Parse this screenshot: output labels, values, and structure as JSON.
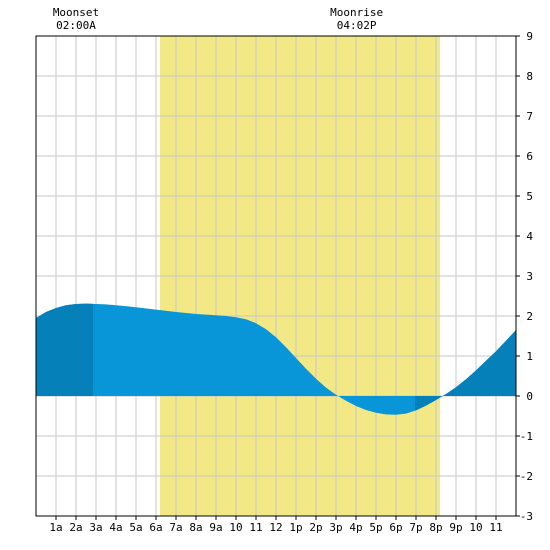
{
  "chart_data": {
    "type": "area",
    "title": "",
    "xlabel": "",
    "ylabel": "",
    "xlim": [
      0,
      24
    ],
    "ylim": [
      -3,
      9
    ],
    "grid": true,
    "x_ticks": [
      {
        "x": 1,
        "label": "1a"
      },
      {
        "x": 2,
        "label": "2a"
      },
      {
        "x": 3,
        "label": "3a"
      },
      {
        "x": 4,
        "label": "4a"
      },
      {
        "x": 5,
        "label": "5a"
      },
      {
        "x": 6,
        "label": "6a"
      },
      {
        "x": 7,
        "label": "7a"
      },
      {
        "x": 8,
        "label": "8a"
      },
      {
        "x": 9,
        "label": "9a"
      },
      {
        "x": 10,
        "label": "10"
      },
      {
        "x": 11,
        "label": "11"
      },
      {
        "x": 12,
        "label": "12"
      },
      {
        "x": 13,
        "label": "1p"
      },
      {
        "x": 14,
        "label": "2p"
      },
      {
        "x": 15,
        "label": "3p"
      },
      {
        "x": 16,
        "label": "4p"
      },
      {
        "x": 17,
        "label": "5p"
      },
      {
        "x": 18,
        "label": "6p"
      },
      {
        "x": 19,
        "label": "7p"
      },
      {
        "x": 20,
        "label": "8p"
      },
      {
        "x": 21,
        "label": "9p"
      },
      {
        "x": 22,
        "label": "10"
      },
      {
        "x": 23,
        "label": "11"
      }
    ],
    "y_ticks": [
      -3,
      -2,
      -1,
      0,
      1,
      2,
      3,
      4,
      5,
      6,
      7,
      8,
      9
    ],
    "daylight": {
      "start": 6.2,
      "end": 20.2
    },
    "dark_shading": [
      {
        "start": 0,
        "end": 2.85
      },
      {
        "start": 18.95,
        "end": 24
      }
    ],
    "annotations": [
      {
        "name": "moonset",
        "label": "Moonset",
        "time": "02:00A",
        "x": 2.0
      },
      {
        "name": "moonrise",
        "label": "Moonrise",
        "time": "04:02P",
        "x": 16.03
      }
    ],
    "series": [
      {
        "x": [
          0,
          0.5,
          1,
          1.5,
          2,
          2.5,
          3,
          3.5,
          4,
          5,
          6,
          7,
          8,
          9,
          9.5,
          10,
          10.5,
          11,
          11.5,
          12,
          12.5,
          13,
          13.5,
          14,
          14.5,
          15,
          15.5,
          16,
          16.5,
          17,
          17.5,
          18,
          18.5,
          19,
          19.5,
          20,
          20.5,
          21,
          21.5,
          22,
          22.5,
          23,
          23.5,
          24
        ],
        "values": [
          1.95,
          2.1,
          2.2,
          2.27,
          2.3,
          2.31,
          2.3,
          2.29,
          2.27,
          2.22,
          2.16,
          2.1,
          2.05,
          2.02,
          2.0,
          1.97,
          1.92,
          1.82,
          1.67,
          1.47,
          1.22,
          0.95,
          0.68,
          0.43,
          0.21,
          0.03,
          -0.12,
          -0.25,
          -0.35,
          -0.42,
          -0.46,
          -0.47,
          -0.44,
          -0.36,
          -0.24,
          -0.1,
          0.05,
          0.22,
          0.42,
          0.64,
          0.88,
          1.12,
          1.38,
          1.65
        ]
      }
    ],
    "colors": {
      "daylight": "#f2e886",
      "grid": "#c8c8c8",
      "fill": "#0896d8",
      "fill_dark": "#0580b8",
      "border": "#000000"
    }
  }
}
